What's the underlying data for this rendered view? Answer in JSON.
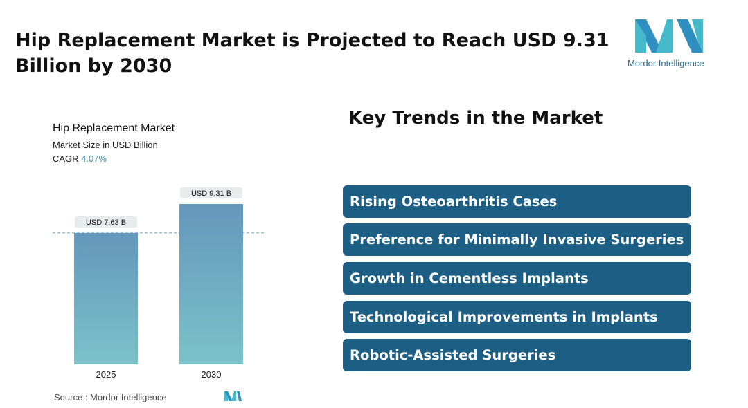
{
  "header": {
    "title": "Hip Replacement Market is Projected to Reach USD 9.31 Billion by 2030"
  },
  "logo": {
    "text": "Mordor Intelligence",
    "icon": "mordor-intelligence-logo"
  },
  "chart_data": {
    "type": "bar",
    "title": "Hip Replacement Market",
    "subtitle": "Market Size in USD Billion",
    "cagr_label": "CAGR",
    "cagr_value": "4.07%",
    "categories": [
      "2025",
      "2030"
    ],
    "values": [
      7.63,
      9.31
    ],
    "data_labels": [
      "USD 7.63 B",
      "USD 9.31 B"
    ],
    "ylim": [
      0,
      9.31
    ],
    "reference_line": 7.63,
    "grid": false,
    "bar_color_top": "#6497bb",
    "bar_color_bottom": "#7cc2c9"
  },
  "source": {
    "text": "Source :  Mordor Intelligence"
  },
  "trends": {
    "heading": "Key Trends in the Market",
    "items": [
      "Rising Osteoarthritis Cases",
      "Preference for Minimally Invasive Surgeries",
      "Growth in Cementless Implants",
      "Technological Improvements in Implants",
      "Robotic-Assisted Surgeries"
    ],
    "box_color": "#1d5f84"
  }
}
